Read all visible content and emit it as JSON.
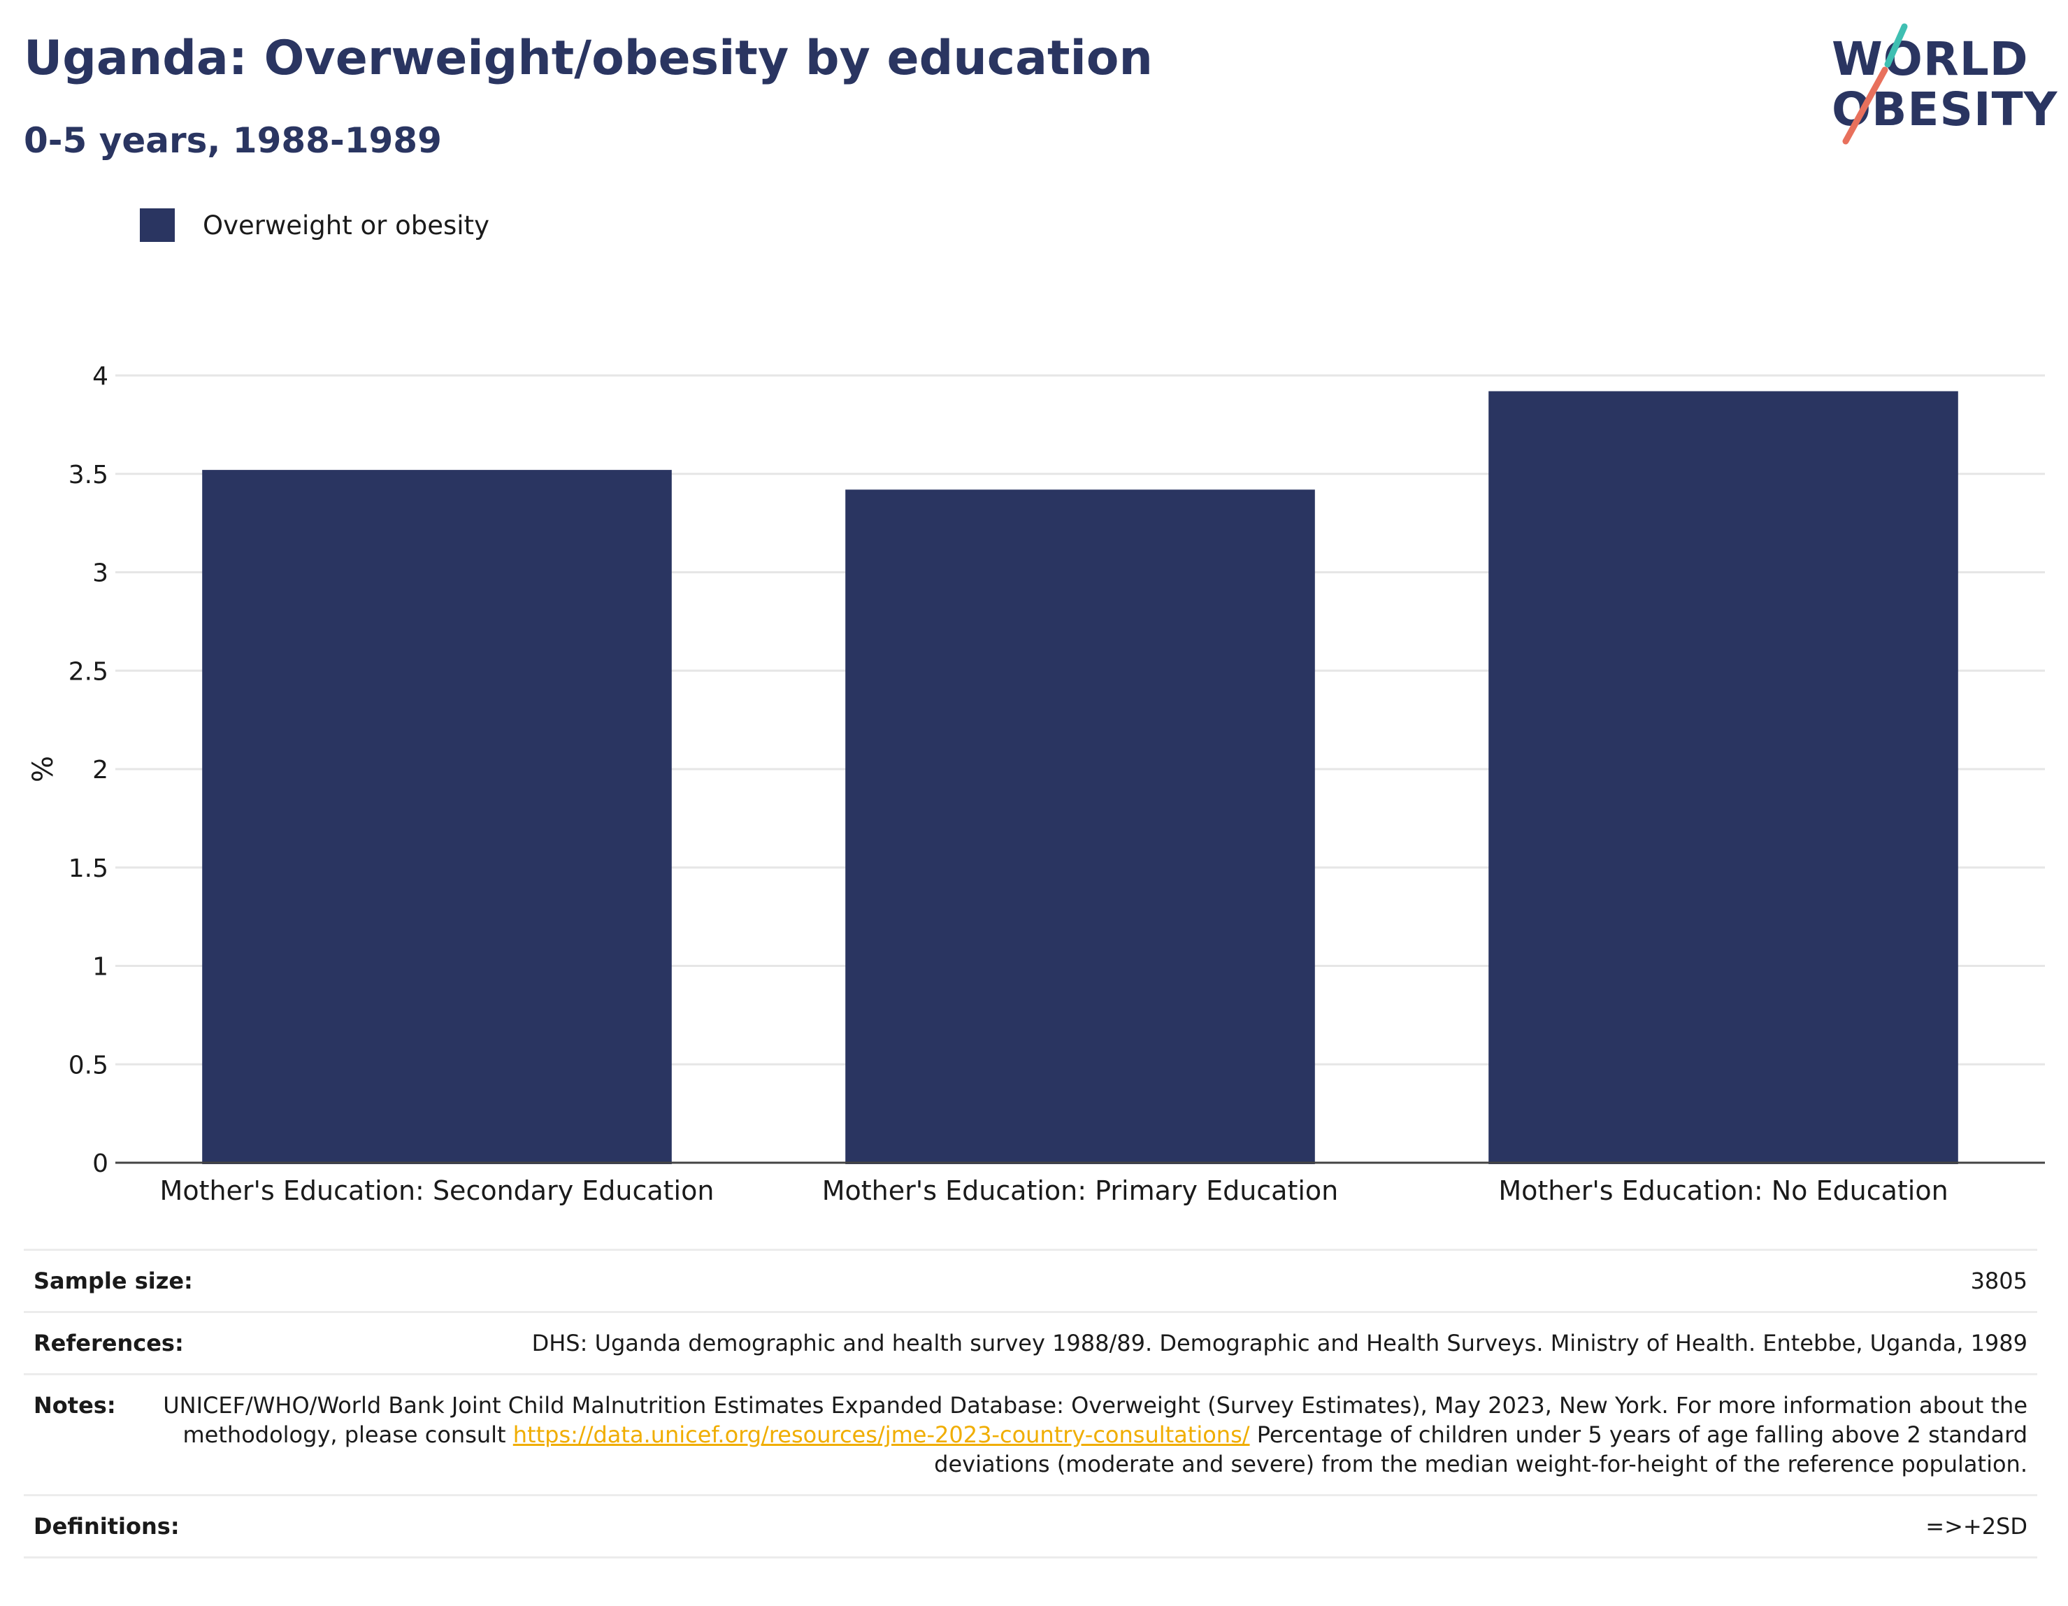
{
  "header": {
    "title": "Uganda: Overweight/obesity by education",
    "subtitle": "0-5 years, 1988-1989"
  },
  "logo": {
    "line1": "WORLD",
    "line2": "OBESITY",
    "text_color": "#2a3561",
    "slash_top_color": "#3fbfb2",
    "slash_bottom_color": "#e8705c"
  },
  "legend": {
    "label": "Overweight or obesity",
    "color": "#2a3561"
  },
  "chart_data": {
    "type": "bar",
    "categories": [
      "Mother's Education: Secondary Education",
      "Mother's Education: Primary Education",
      "Mother's Education: No Education"
    ],
    "series": [
      {
        "name": "Overweight or obesity",
        "values": [
          3.52,
          3.42,
          3.92
        ],
        "color": "#2a3561"
      }
    ],
    "ylabel": "%",
    "xlabel": "",
    "ylim": [
      0,
      4
    ],
    "yticks": [
      "0",
      "0.5",
      "1",
      "1.5",
      "2",
      "2.5",
      "3",
      "3.5",
      "4"
    ],
    "grid": true,
    "legend_position": "top-left"
  },
  "info": {
    "sample_size_label": "Sample size:",
    "sample_size_value": "3805",
    "references_label": "References:",
    "references_value": "DHS: Uganda demographic and health survey 1988/89. Demographic and Health Surveys. Ministry of Health. Entebbe, Uganda, 1989",
    "notes_label": "Notes:",
    "notes_text_before": "UNICEF/WHO/World Bank Joint Child Malnutrition Estimates Expanded Database: Overweight (Survey Estimates), May 2023, New York. For more information about the methodology, please consult ",
    "notes_link": "https://data.unicef.org/resources/jme-2023-country-consultations/",
    "notes_text_after": " Percentage of children under 5 years of age falling above 2 standard deviations (moderate and severe) from the median weight-for-height of the reference population.",
    "definitions_label": "Definitions:",
    "definitions_value": "=>+2SD",
    "link_color": "#f0ad00"
  }
}
